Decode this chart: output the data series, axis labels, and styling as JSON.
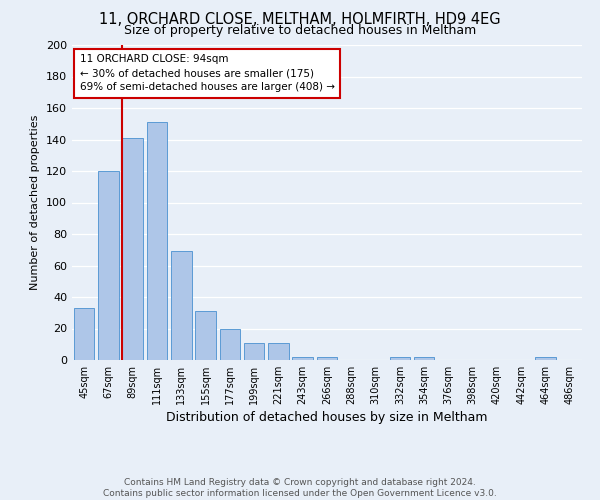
{
  "title_line1": "11, ORCHARD CLOSE, MELTHAM, HOLMFIRTH, HD9 4EG",
  "title_line2": "Size of property relative to detached houses in Meltham",
  "xlabel": "Distribution of detached houses by size in Meltham",
  "ylabel": "Number of detached properties",
  "footer1": "Contains HM Land Registry data © Crown copyright and database right 2024.",
  "footer2": "Contains public sector information licensed under the Open Government Licence v3.0.",
  "bar_labels": [
    "45sqm",
    "67sqm",
    "89sqm",
    "111sqm",
    "133sqm",
    "155sqm",
    "177sqm",
    "199sqm",
    "221sqm",
    "243sqm",
    "266sqm",
    "288sqm",
    "310sqm",
    "332sqm",
    "354sqm",
    "376sqm",
    "398sqm",
    "420sqm",
    "442sqm",
    "464sqm",
    "486sqm"
  ],
  "bar_values": [
    33,
    120,
    141,
    151,
    69,
    31,
    20,
    11,
    11,
    2,
    2,
    0,
    0,
    2,
    2,
    0,
    0,
    0,
    0,
    2,
    0
  ],
  "bar_color": "#aec6e8",
  "bar_edge_color": "#5b9bd5",
  "annotation_line1": "11 ORCHARD CLOSE: 94sqm",
  "annotation_line2": "← 30% of detached houses are smaller (175)",
  "annotation_line3": "69% of semi-detached houses are larger (408) →",
  "annotation_box_facecolor": "#ffffff",
  "annotation_box_edgecolor": "#cc0000",
  "vline_color": "#cc0000",
  "vline_x_index": 2,
  "ylim_min": 0,
  "ylim_max": 200,
  "bg_color": "#e8eff8",
  "grid_color": "#ffffff",
  "title_fontsize": 10.5,
  "subtitle_fontsize": 9,
  "ylabel_fontsize": 8,
  "xlabel_fontsize": 9,
  "tick_fontsize": 7,
  "annotation_fontsize": 7.5,
  "footer_fontsize": 6.5,
  "footer_color": "#555555"
}
